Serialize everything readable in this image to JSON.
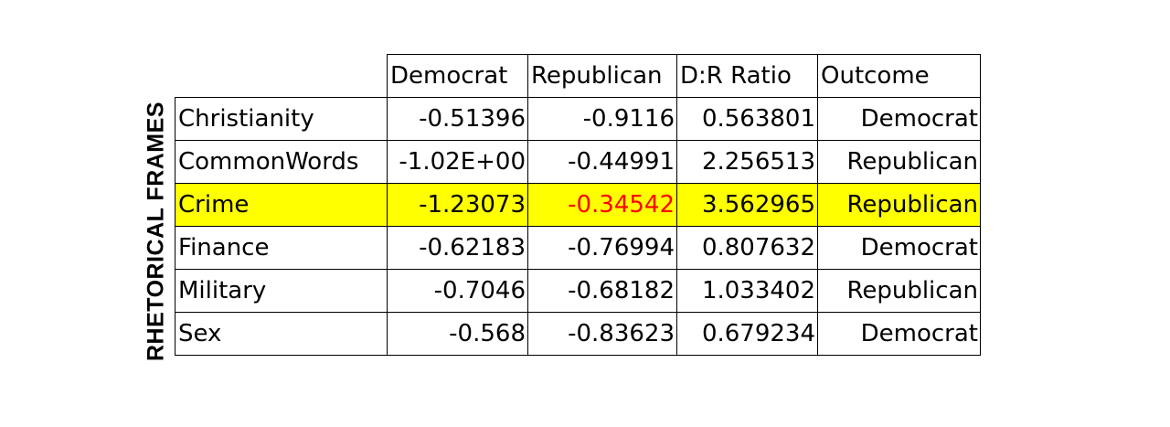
{
  "side_label": "RHETORICAL FRAMES",
  "table": {
    "columns": [
      "Democrat",
      "Republican",
      "D:R Ratio",
      "Outcome"
    ],
    "rows": [
      {
        "frame": "Christianity",
        "democrat": "-0.51396",
        "republican": "-0.9116",
        "ratio": "0.563801",
        "outcome": "Democrat"
      },
      {
        "frame": "CommonWords",
        "democrat": "-1.02E+00",
        "republican": "-0.44991",
        "ratio": "2.256513",
        "outcome": "Republican"
      },
      {
        "frame": "Crime",
        "democrat": "-1.23073",
        "republican": "-0.34542",
        "ratio": "3.562965",
        "outcome": "Republican",
        "highlighted": true
      },
      {
        "frame": "Finance",
        "democrat": "-0.62183",
        "republican": "-0.76994",
        "ratio": "0.807632",
        "outcome": "Democrat"
      },
      {
        "frame": "Military",
        "democrat": "-0.7046",
        "republican": "-0.68182",
        "ratio": "1.033402",
        "outcome": "Republican"
      },
      {
        "frame": "Sex",
        "democrat": "-0.568",
        "republican": "-0.83623",
        "ratio": "0.679234",
        "outcome": "Democrat"
      }
    ]
  },
  "colors": {
    "highlight_row": "#ffff00",
    "highlight_value": "#ff0000"
  }
}
